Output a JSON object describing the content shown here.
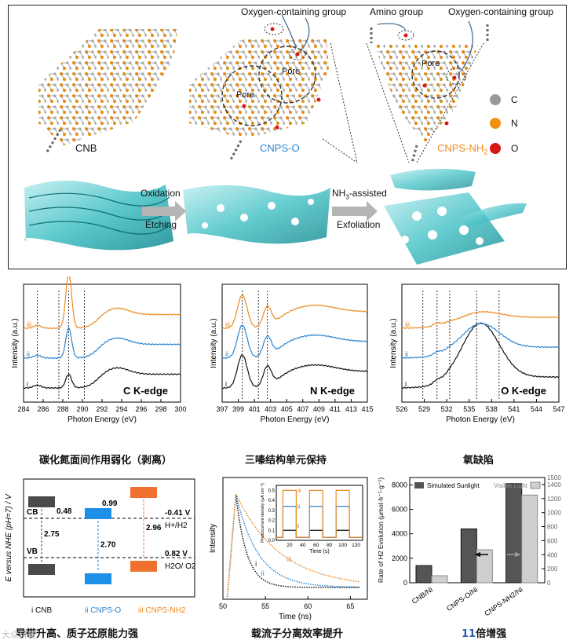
{
  "top_panel": {
    "labels": {
      "cnb": "CNB",
      "cnps_o": "CNPS-O",
      "cnps_nh2": "CNPS-NH",
      "cnps_nh2_sub": "2",
      "oxygen_group_1": "Oxygen-containing group",
      "amino_group": "Amino group",
      "oxygen_group_2": "Oxygen-containing group",
      "pore_1": "Pore",
      "pore_2": "Pore",
      "pore_3": "Pore",
      "oxidation": "Oxidation",
      "etching": "Etching",
      "nh3_assisted": "NH",
      "nh3_sub": "3",
      "nh3_rest": "-assisted",
      "exfoliation": "Exfoliation"
    },
    "legend": [
      {
        "symbol": "C",
        "color": "#9a9a9a"
      },
      {
        "symbol": "N",
        "color": "#f0920e"
      },
      {
        "symbol": "O",
        "color": "#d81818"
      }
    ]
  },
  "chart_data": [
    {
      "type": "line",
      "title": "C K-edge",
      "xlabel": "Photon Energy (eV)",
      "ylabel": "Intensity (a.u.)",
      "xticks": [
        "284",
        "286",
        "288",
        "290",
        "292",
        "294",
        "296",
        "298",
        "300"
      ],
      "xlim": [
        284,
        300
      ],
      "series": [
        {
          "name": "i",
          "color": "#111111"
        },
        {
          "name": "ii",
          "color": "#2a84d2"
        },
        {
          "name": "iii",
          "color": "#ee8a22"
        }
      ],
      "reference_lines": [
        285.4,
        287.6,
        288.6,
        290.2
      ]
    },
    {
      "type": "line",
      "title": "N K-edge",
      "xlabel": "Photon Energy (eV)",
      "ylabel": "Intensity (a.u.)",
      "xticks": [
        "397",
        "399",
        "401",
        "403",
        "405",
        "407",
        "409",
        "411",
        "413",
        "415"
      ],
      "xlim": [
        397,
        415
      ],
      "series": [
        {
          "name": "i",
          "color": "#111111"
        },
        {
          "name": "ii",
          "color": "#2a84d2"
        },
        {
          "name": "iii",
          "color": "#ee8a22"
        }
      ],
      "reference_lines": [
        399.5,
        401.5,
        402.6
      ]
    },
    {
      "type": "line",
      "title": "O K-edge",
      "xlabel": "Photon Energy (eV)",
      "ylabel": "Intensity (a.u.)",
      "xticks": [
        "526",
        "529",
        "532",
        "535",
        "538",
        "541",
        "544",
        "547"
      ],
      "xlim": [
        526,
        547
      ],
      "series": [
        {
          "name": "i",
          "color": "#111111"
        },
        {
          "name": "ii",
          "color": "#2a84d2"
        },
        {
          "name": "iii",
          "color": "#ee8a22"
        }
      ],
      "reference_lines": [
        528.8,
        530.7,
        532.4,
        536.0,
        539.0
      ]
    },
    {
      "type": "diagram",
      "ylabel": "E versus NHE (pH=7) / V",
      "labels": {
        "cb": "CB",
        "vb": "VB",
        "cb_value": "-0.41 V",
        "cb_couple": "H+/H2",
        "vb_value": "0.82 V",
        "vb_couple": "H2O/ O2"
      },
      "gaps": [
        "2.75",
        "2.70",
        "2.96"
      ],
      "offsets": [
        "0.48",
        "0.99"
      ],
      "legend": [
        "i  CNB",
        "ii  CNPS-O",
        "iii  CNPS-NH2"
      ]
    },
    {
      "type": "line",
      "xlabel": "Time (ns)",
      "ylabel": "Intensity",
      "xticks": [
        "50",
        "55",
        "60",
        "65"
      ],
      "xlim": [
        50,
        67
      ],
      "inset": {
        "xlabel": "Time (s)",
        "ylabel": "Photocurrent density (μA cm⁻²)",
        "xticks": [
          "20",
          "40",
          "60",
          "80",
          "100",
          "120"
        ],
        "yticks": [
          "0.0",
          "0.1",
          "0.2",
          "0.3",
          "0.4",
          "0.5"
        ],
        "xlim": [
          0,
          130
        ],
        "ylim": [
          0,
          0.55
        ],
        "series": [
          {
            "name": "i",
            "plateau": 0.1,
            "color": "#111111"
          },
          {
            "name": "ii",
            "plateau": 0.34,
            "color": "#2a84d2"
          },
          {
            "name": "iii",
            "plateau": 0.5,
            "color": "#ee8a22"
          }
        ]
      },
      "series": [
        {
          "name": "i",
          "color": "#111111"
        },
        {
          "name": "ii",
          "color": "#2a84d2"
        },
        {
          "name": "iii",
          "color": "#ee8a22"
        }
      ]
    },
    {
      "type": "bar",
      "categories": [
        "CNB/Ni",
        "CNPS-O/Ni",
        "CNPS-NH2/Ni"
      ],
      "ylabel": "Rate of H2 Evolution (μmol·h⁻¹·g⁻¹)",
      "yticks_left": [
        "0",
        "2000",
        "4000",
        "6000",
        "8000"
      ],
      "yticks_right": [
        "0",
        "200",
        "400",
        "600",
        "800",
        "1000",
        "1200",
        "1400",
        "1500"
      ],
      "ylim_left": [
        0,
        8600
      ],
      "ylim_right": [
        0,
        1500
      ],
      "series": [
        {
          "name": "Simulated Sunlight",
          "axis": "left",
          "values": [
            1400,
            4400,
            8100
          ]
        },
        {
          "name": "Visible Light",
          "axis": "right",
          "values": [
            100,
            470,
            1250
          ]
        }
      ]
    }
  ],
  "captions": {
    "c_edge": "碳化氮面间作用弱化（剥离）",
    "n_edge": "三嗪结构单元保持",
    "o_edge": "氧缺陷",
    "band": "导带升高、质子还原能力强",
    "carrier": "载流子分离效率提升",
    "rate_num": "11",
    "rate_text": "倍增强"
  },
  "watermark": "大众科普"
}
